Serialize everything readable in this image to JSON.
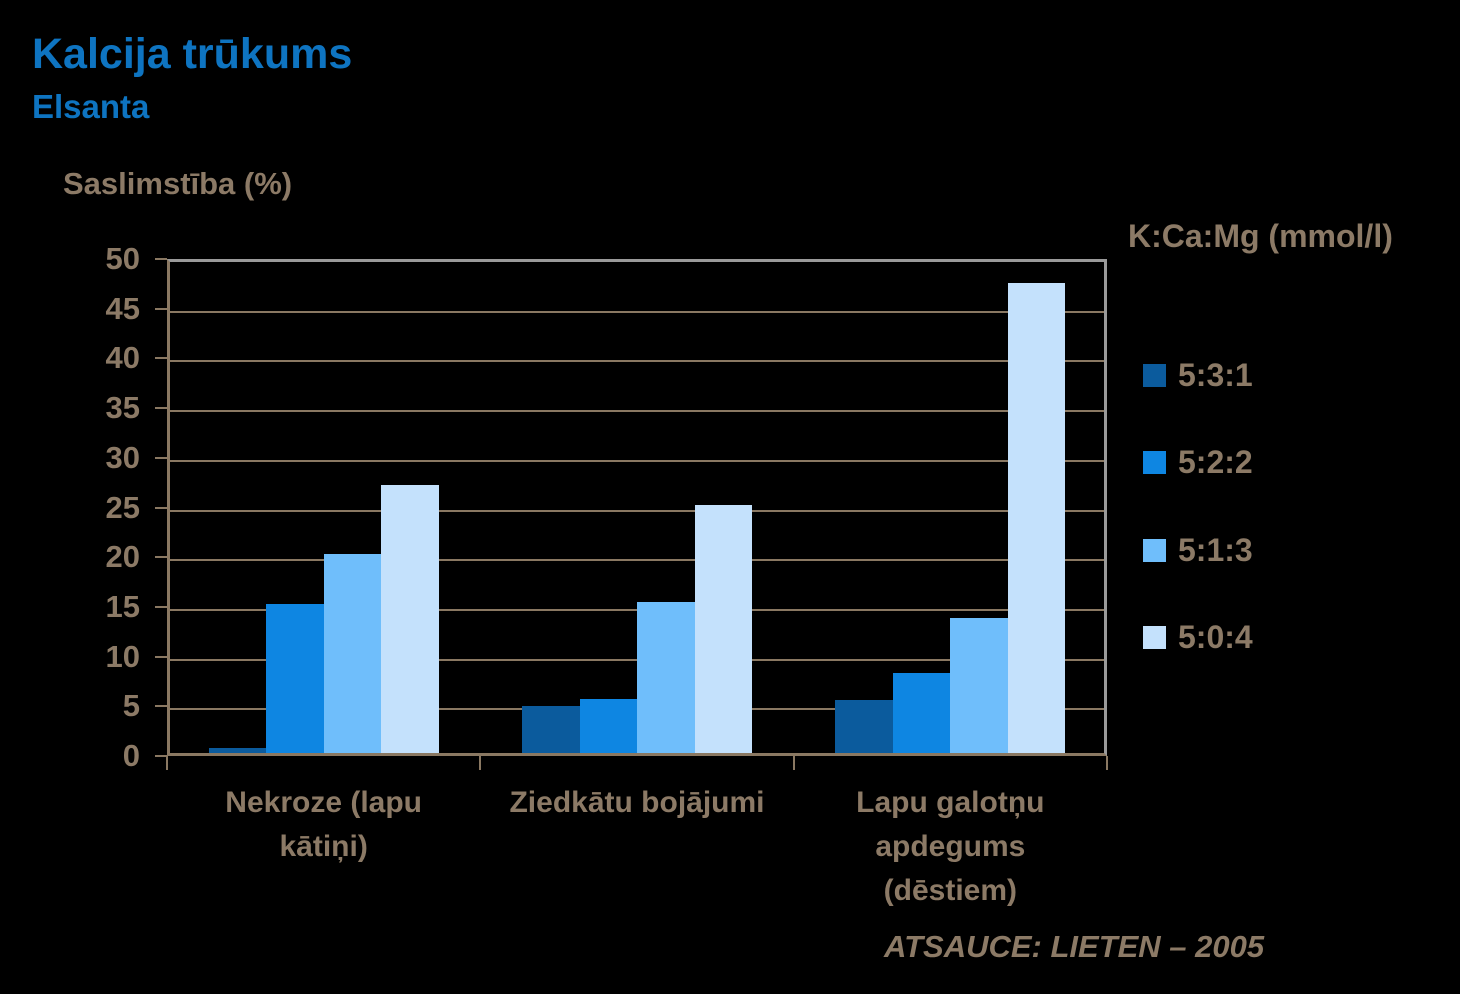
{
  "header": {
    "title": "Kalcija trūkums",
    "subtitle": "Elsanta"
  },
  "chart_data": {
    "type": "bar",
    "title": "Kalcija trūkums",
    "subtitle": "Elsanta",
    "ylabel": "Saslimstība (%)",
    "xlabel": "",
    "ylim": [
      0,
      50
    ],
    "ytick_step": 5,
    "grid": true,
    "legend_title": "K:Ca:Mg (mmol/l)",
    "legend_position": "right",
    "categories": [
      "Nekroze (lapu kātiņi)",
      "Ziedkātu bojājumi",
      "Lapu galotņu apdegums (dēstiem)"
    ],
    "series": [
      {
        "name": "5:3:1",
        "color": "#0B5B9D",
        "values": [
          0.5,
          4.7,
          5.3
        ]
      },
      {
        "name": "5:2:2",
        "color": "#0E86E2",
        "values": [
          15,
          5.4,
          8
        ]
      },
      {
        "name": "5:1:3",
        "color": "#6FBEFB",
        "values": [
          20,
          15.2,
          13.6
        ]
      },
      {
        "name": "5:0:4",
        "color": "#C4E1FC",
        "values": [
          27,
          25,
          47.3
        ]
      }
    ],
    "source": "ATSAUCE: LIETEN – 2005"
  },
  "colors": {
    "background": "#000000",
    "title_blue": "#0E74C1",
    "text_tan": "#8C7A66",
    "grid_tan": "#8A7862",
    "border_gray": "#9A9A9A"
  }
}
